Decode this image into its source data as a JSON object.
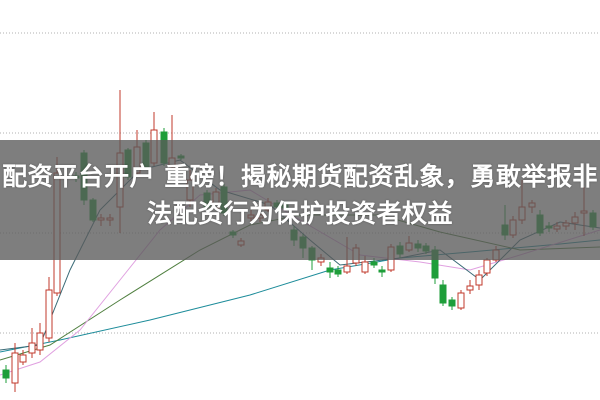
{
  "article": {
    "title": "配资平台开户 重磅！揭秘期货配资乱象，勇敢举报非法配资行为保护投资者权益"
  },
  "colors": {
    "up_candle": "#c0392b",
    "down_candle": "#1e9e3a",
    "banner": "#5a5a5a",
    "gridline": "#b0b0b0",
    "ma_lines": [
      "#1d8c9a",
      "#4f7f3f",
      "#e0a0e0",
      "#3a6b77"
    ]
  }
}
